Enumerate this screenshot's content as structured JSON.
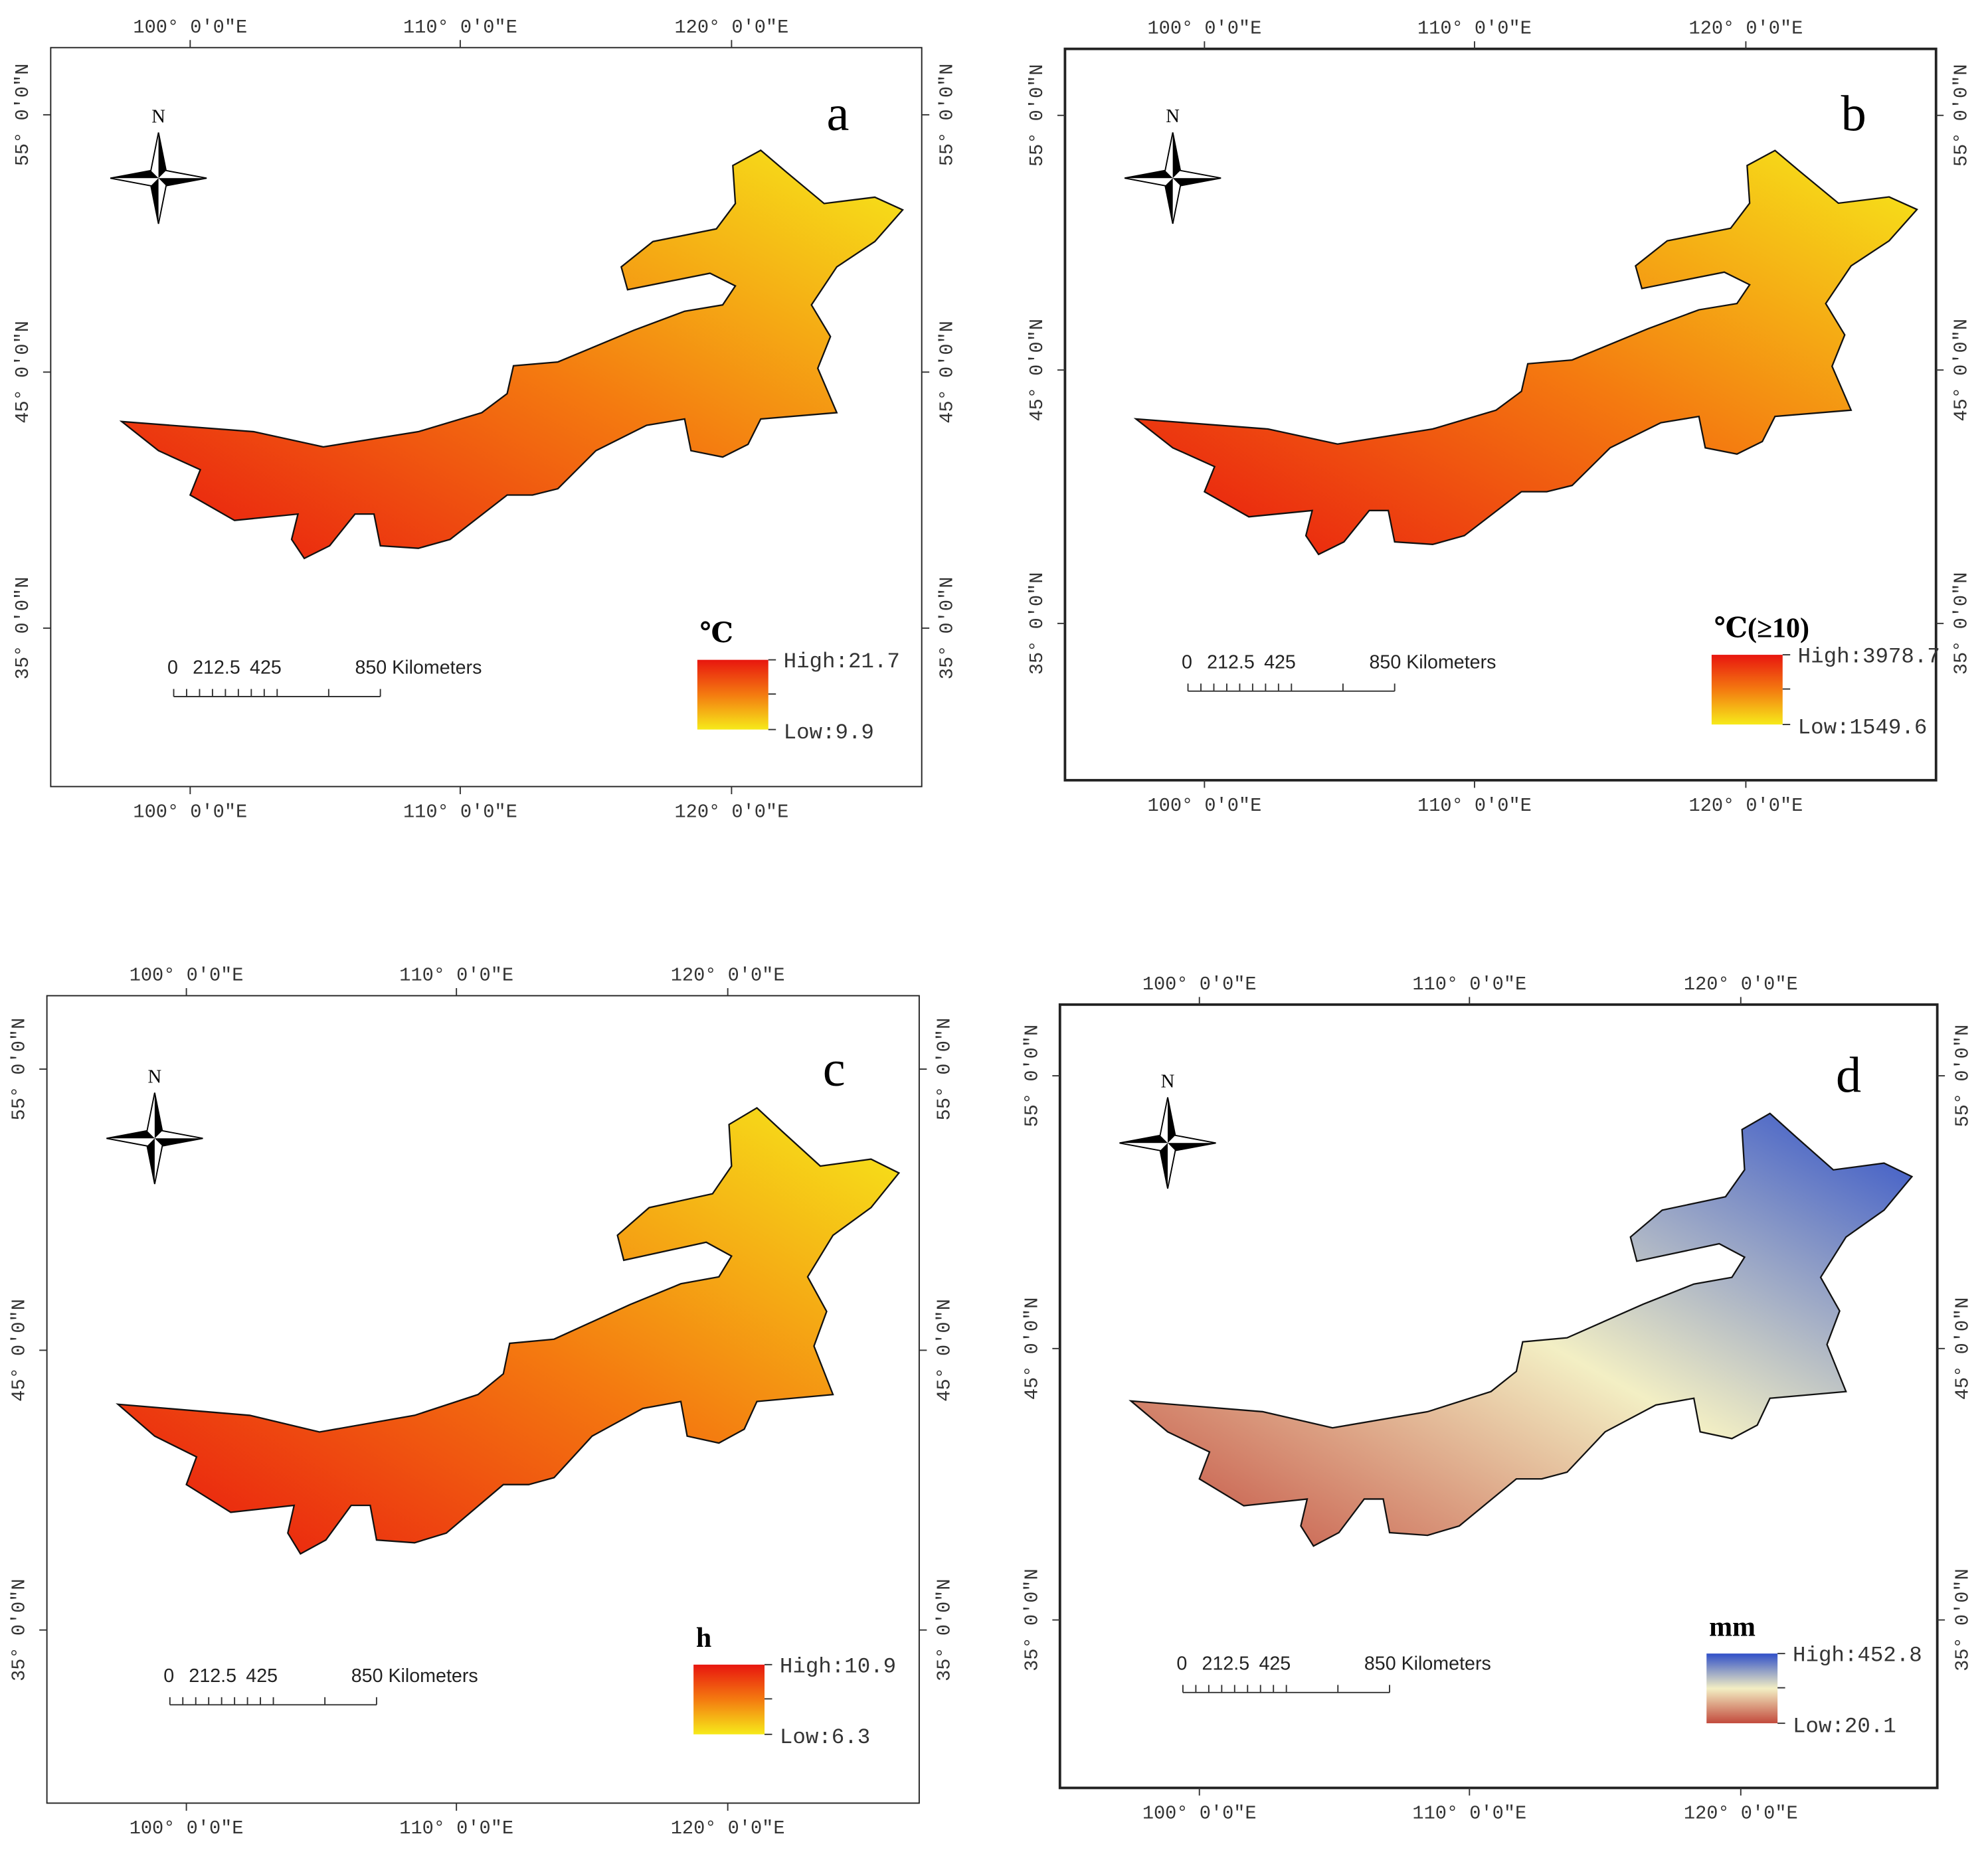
{
  "north": "N",
  "lon_labels": [
    "100° 0′0″E",
    "110° 0′0″E",
    "120° 0′0″E"
  ],
  "lat_labels": [
    "55° 0′0″N",
    "45° 0′0″N",
    "35° 0′0″N"
  ],
  "scale_bar": [
    "0",
    "212.5",
    "425",
    "850 Kilometers"
  ],
  "panels": [
    {
      "letter": "a",
      "unit": "℃",
      "legend": {
        "high": "High:21.7",
        "low": "Low:9.9"
      },
      "colors": [
        "#e8160f",
        "#f47a10",
        "#f6ea1a"
      ],
      "high_side": "west"
    },
    {
      "letter": "b",
      "unit": "℃(≥10)",
      "legend": {
        "high": "High:3978.7",
        "low": "Low:1549.6"
      },
      "colors": [
        "#e8160f",
        "#f47a10",
        "#f6ea1a"
      ],
      "high_side": "west"
    },
    {
      "letter": "c",
      "unit": "h",
      "legend": {
        "high": "High:10.9",
        "low": "Low:6.3"
      },
      "colors": [
        "#e8160f",
        "#f47a10",
        "#f6ea1a"
      ],
      "high_side": "west"
    },
    {
      "letter": "d",
      "unit": "mm",
      "legend": {
        "high": "High:452.8",
        "low": "Low:20.1"
      },
      "colors": [
        "#3050c8",
        "#f3efc4",
        "#c24a3c"
      ],
      "high_side": "east"
    }
  ]
}
